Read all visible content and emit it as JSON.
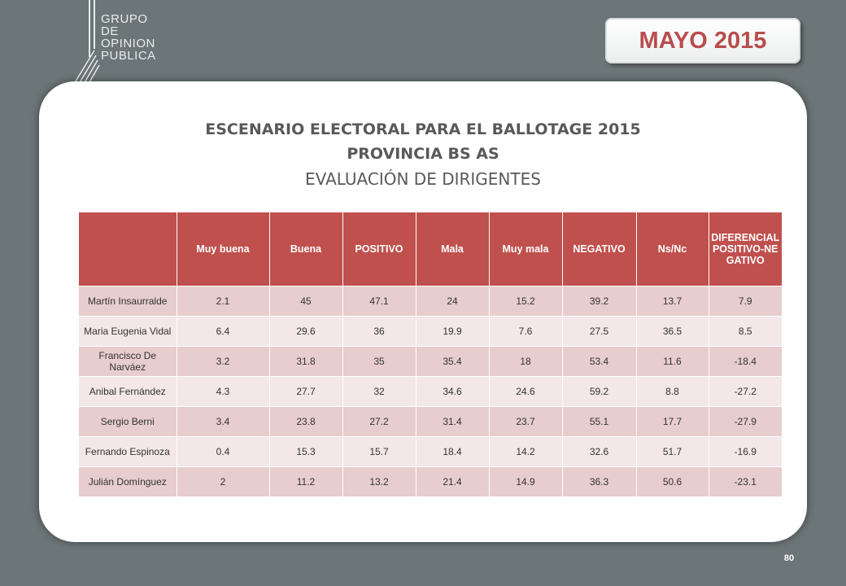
{
  "logo": {
    "lines": [
      "GRUPO",
      "DE",
      "OPINION",
      "PUBLICA"
    ]
  },
  "date_badge": "MAYO 2015",
  "title": {
    "line1": "ESCENARIO ELECTORAL PARA EL BALLOTAGE 2015",
    "line2": "PROVINCIA BS AS",
    "line3": "EVALUACIÓN DE DIRIGENTES"
  },
  "table": {
    "headers": [
      "",
      "Muy buena",
      "Buena",
      "POSITIVO",
      "Mala",
      "Muy mala",
      "NEGATIVO",
      "Ns/Nc",
      "DIFERENCIAL POSITIVO-NEGATIVO"
    ],
    "rows": [
      {
        "name": "Martín Insaurralde",
        "values": [
          "2.1",
          "45",
          "47.1",
          "24",
          "15.2",
          "39.2",
          "13.7",
          "7.9"
        ]
      },
      {
        "name": "Maria Eugenia Vidal",
        "values": [
          "6.4",
          "29.6",
          "36",
          "19.9",
          "7.6",
          "27.5",
          "36.5",
          "8.5"
        ]
      },
      {
        "name": "Francisco De Narváez",
        "values": [
          "3.2",
          "31.8",
          "35",
          "35.4",
          "18",
          "53.4",
          "11.6",
          "-18.4"
        ]
      },
      {
        "name": "Anibal Fernández",
        "values": [
          "4.3",
          "27.7",
          "32",
          "34.6",
          "24.6",
          "59.2",
          "8.8",
          "-27.2"
        ]
      },
      {
        "name": "Sergio Berni",
        "values": [
          "3.4",
          "23.8",
          "27.2",
          "31.4",
          "23.7",
          "55.1",
          "17.7",
          "-27.9"
        ]
      },
      {
        "name": "Fernando Espinoza",
        "values": [
          "0.4",
          "15.3",
          "15.7",
          "18.4",
          "14.2",
          "32.6",
          "51.7",
          "-16.9"
        ]
      },
      {
        "name": "Julián Domínguez",
        "values": [
          "2",
          "11.2",
          "13.2",
          "21.4",
          "14.9",
          "36.3",
          "50.6",
          "-23.1"
        ]
      }
    ]
  },
  "page_number": "80",
  "colors": {
    "background": "#6c7577",
    "header_red": "#c0504d",
    "row_odd": "#e7cdcd",
    "row_even": "#f3e7e7",
    "title_gray": "#595959",
    "badge_text": "#b84d4d"
  }
}
